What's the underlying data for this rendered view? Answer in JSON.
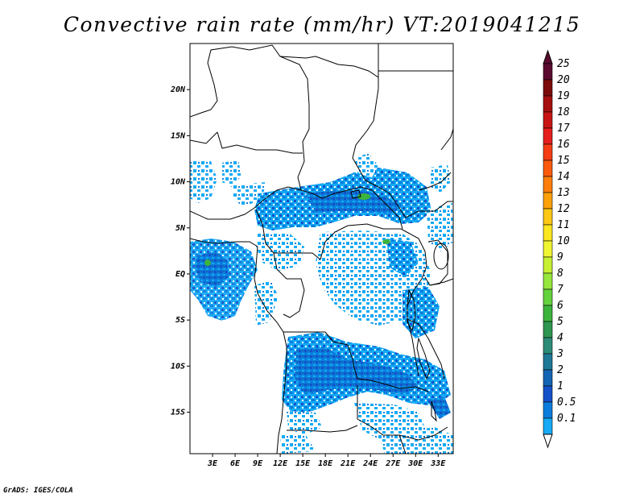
{
  "title": "Convective rain rate (mm/hr) VT:2019041215",
  "credit": "GrADS: IGES/COLA",
  "map": {
    "lon_range": [
      0,
      35
    ],
    "lat_range": [
      -19.5,
      25
    ],
    "x_ticks": [
      "3E",
      "6E",
      "9E",
      "12E",
      "15E",
      "18E",
      "21E",
      "24E",
      "27E",
      "30E",
      "33E"
    ],
    "x_tick_values": [
      3,
      6,
      9,
      12,
      15,
      18,
      21,
      24,
      27,
      30,
      33
    ],
    "y_ticks": [
      "20N",
      "15N",
      "10N",
      "5N",
      "EQ",
      "5S",
      "10S",
      "15S"
    ],
    "y_tick_values": [
      20,
      15,
      10,
      5,
      0,
      -5,
      -10,
      -15
    ]
  },
  "colorbar": {
    "labels": [
      "25",
      "20",
      "19",
      "18",
      "17",
      "16",
      "15",
      "14",
      "13",
      "12",
      "11",
      "10",
      "9",
      "8",
      "7",
      "6",
      "5",
      "4",
      "3",
      "2",
      "1",
      "0.5",
      "0.1"
    ],
    "colors": [
      "#5a0a2e",
      "#7c0a0a",
      "#a50f0f",
      "#c81414",
      "#e61e1e",
      "#f53c14",
      "#fa5a0a",
      "#fc7d0a",
      "#fca00a",
      "#fcc814",
      "#fce61e",
      "#f0f532",
      "#c8f032",
      "#96e63c",
      "#64d23c",
      "#3cb43c",
      "#2d9650",
      "#2d8c78",
      "#1e7896",
      "#1464b4",
      "#1450c8",
      "#0a7ddc",
      "#14aaf5"
    ]
  },
  "rain_colors": {
    "light": "#14aaf5",
    "mid": "#0a7ddc",
    "heavy": "#1450c8",
    "green": "#3cb43c"
  }
}
